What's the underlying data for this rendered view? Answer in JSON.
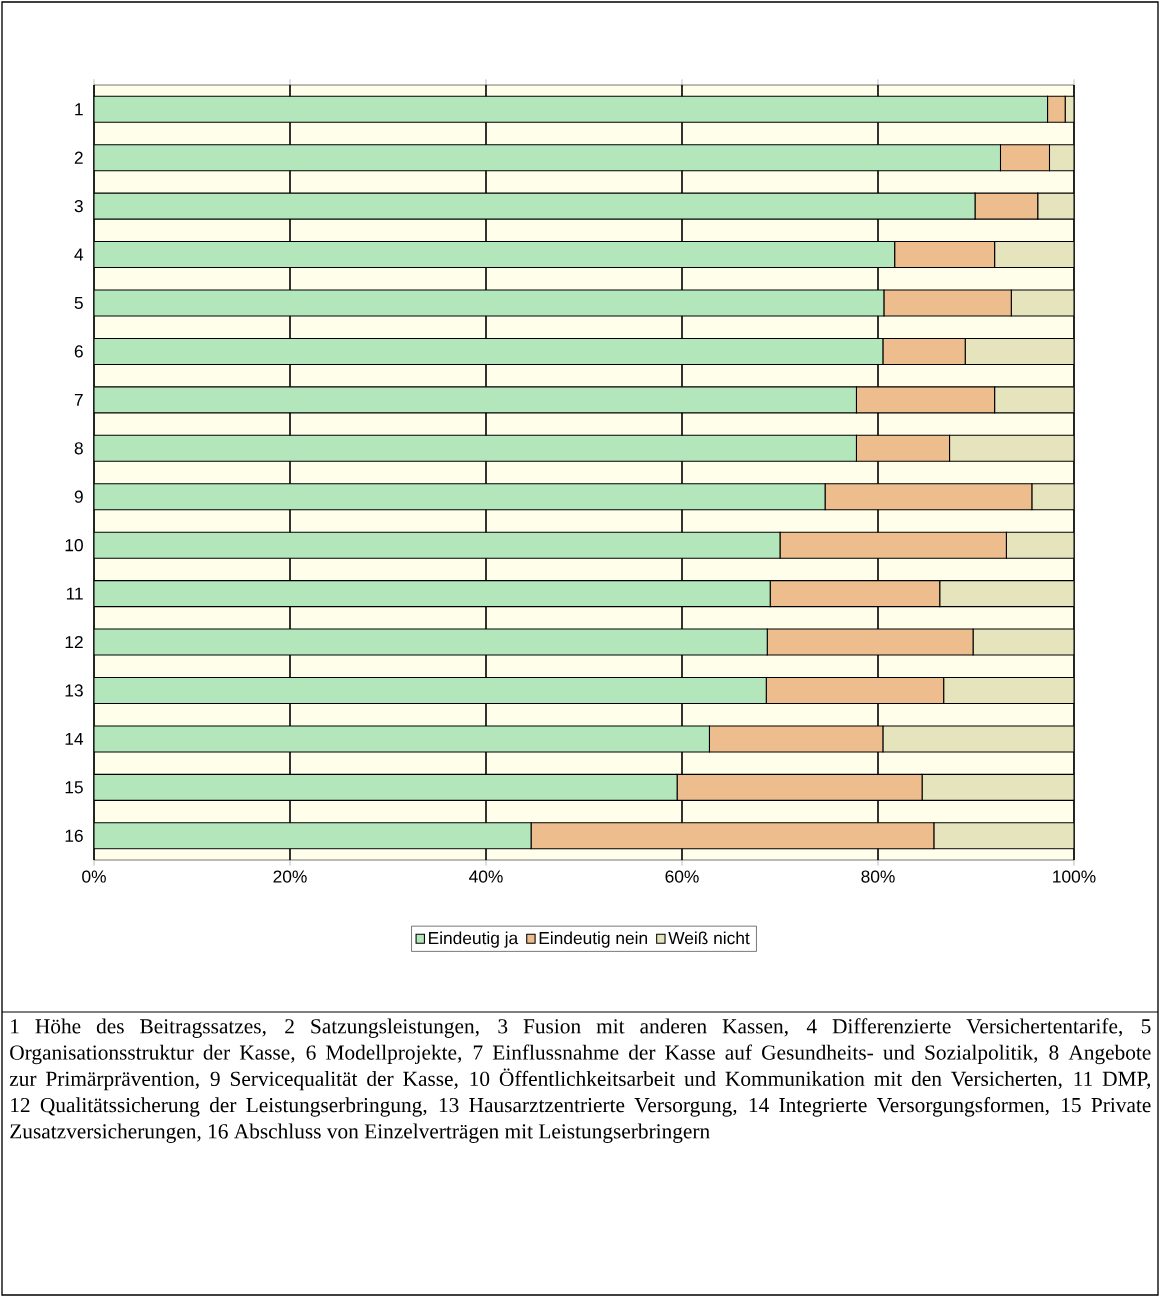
{
  "chart_data": {
    "type": "bar",
    "orientation": "horizontal",
    "stacked": true,
    "categories": [
      "1",
      "2",
      "3",
      "4",
      "5",
      "6",
      "7",
      "8",
      "9",
      "10",
      "11",
      "12",
      "13",
      "14",
      "15",
      "16"
    ],
    "series": [
      {
        "name": "Eindeutig ja",
        "color": "#b4e6bc",
        "values": [
          97.3,
          92.5,
          89.9,
          81.7,
          80.6,
          80.5,
          77.8,
          77.8,
          74.6,
          70.0,
          69.0,
          68.7,
          68.6,
          62.8,
          59.5,
          44.6
        ]
      },
      {
        "name": "Eindeutig nein",
        "color": "#eebd8e",
        "values": [
          1.8,
          5.0,
          6.4,
          10.2,
          13.0,
          8.4,
          14.1,
          9.5,
          21.1,
          23.1,
          17.3,
          21.0,
          18.1,
          17.7,
          25.0,
          41.1
        ]
      },
      {
        "name": "Weiß nicht",
        "color": "#e6e4bc",
        "values": [
          0.9,
          2.5,
          3.7,
          8.1,
          6.4,
          11.1,
          8.1,
          12.7,
          4.3,
          6.9,
          13.7,
          10.3,
          13.3,
          19.5,
          15.5,
          14.3
        ]
      }
    ],
    "xlim": [
      0,
      100
    ],
    "xticks": [
      {
        "value": 0,
        "label": "0%"
      },
      {
        "value": 20,
        "label": "20%"
      },
      {
        "value": 40,
        "label": "40%"
      },
      {
        "value": 60,
        "label": "60%"
      },
      {
        "value": 80,
        "label": "80%"
      },
      {
        "value": 100,
        "label": "100%"
      }
    ],
    "grid": "x",
    "legend": "bottom",
    "annotations": [
      "1 Höhe des Beitragssatzes, 2 Satzungsleistungen, 3 Fusion mit anderen Kassen, 4 Differenzierte Versichertentarife, 5 Organisationsstruktur der Kasse, 6 Modellprojekte, 7 Einflussnahme der Kasse auf Gesundheits- und Sozialpolitik, 8 Angebote zur Primärprävention, 9 Servicequalität der Kasse, 10 Öffentlichkeitsarbeit und Kommunikation mit den Versicherten, 11 DMP, 12 Qualitätssicherung der Leistungserbringung, 13 Hausarztzentrierte Versorgung, 14 Integrierte Versorgungsformen, 15 Private Zusatzversicherungen, 16 Abschluss von Einzelverträgen mit Leistungserbringern"
    ]
  }
}
